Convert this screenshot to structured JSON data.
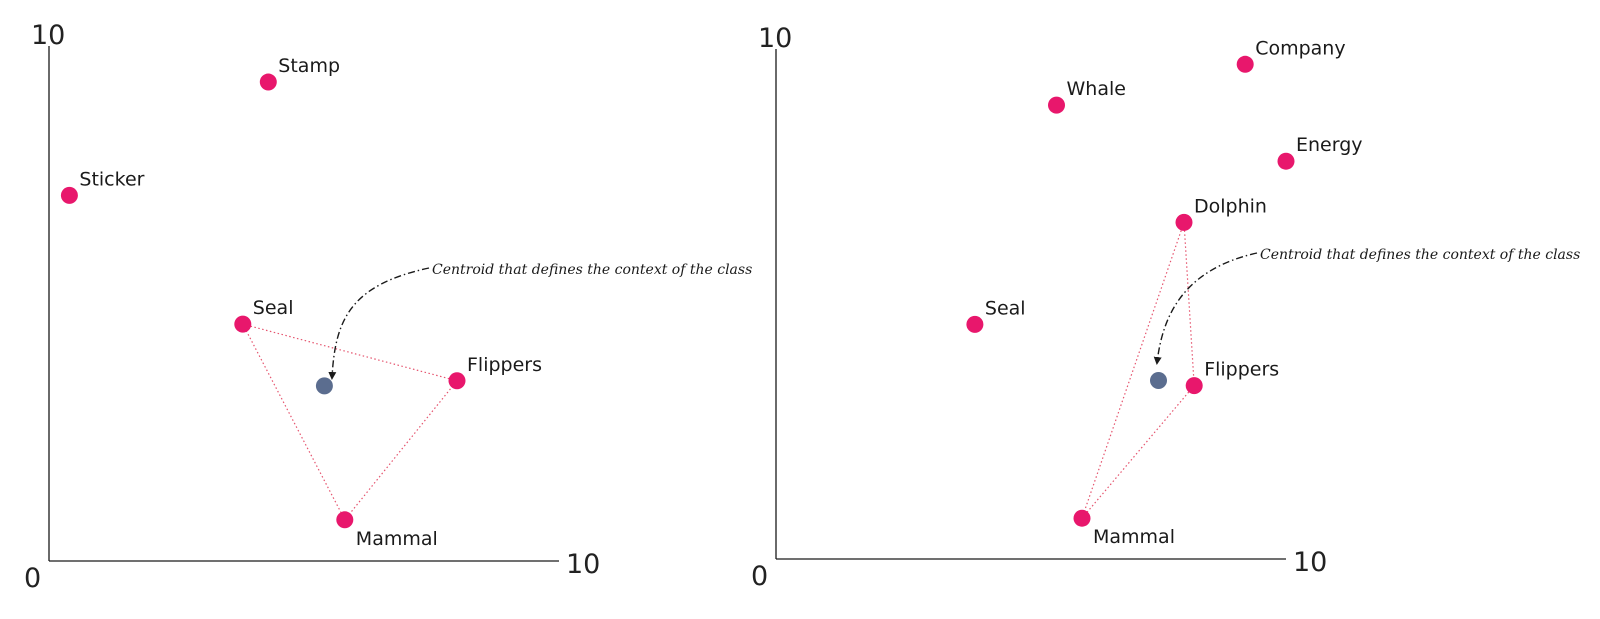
{
  "colors": {
    "point": "#e8176c",
    "centroid": "#5b6d8f",
    "triangle": "#e5546e",
    "axis": "#1a1a1a"
  },
  "chart_data": [
    {
      "type": "scatter",
      "xlim": [
        0,
        10
      ],
      "ylim": [
        0,
        10
      ],
      "ticks": {
        "origin": "0",
        "x_max": "10",
        "y_max": "10"
      },
      "points": [
        {
          "label": "Stamp",
          "x": 4.3,
          "y": 9.3
        },
        {
          "label": "Sticker",
          "x": 0.4,
          "y": 7.1
        },
        {
          "label": "Seal",
          "x": 3.8,
          "y": 4.6
        },
        {
          "label": "Flippers",
          "x": 8.0,
          "y": 3.5
        },
        {
          "label": "Mammal",
          "x": 5.8,
          "y": 0.8
        }
      ],
      "centroid": {
        "x": 5.4,
        "y": 3.4
      },
      "triangle": [
        "Seal",
        "Flippers",
        "Mammal"
      ],
      "annotation": "Centroid that defines the context of the class"
    },
    {
      "type": "scatter",
      "xlim": [
        0,
        10
      ],
      "ylim": [
        0,
        10
      ],
      "ticks": {
        "origin": "0",
        "x_max": "10",
        "y_max": "10"
      },
      "points": [
        {
          "label": "Company",
          "x": 9.2,
          "y": 9.7
        },
        {
          "label": "Whale",
          "x": 5.5,
          "y": 8.9
        },
        {
          "label": "Energy",
          "x": 10.0,
          "y": 7.8
        },
        {
          "label": "Dolphin",
          "x": 8.0,
          "y": 6.6
        },
        {
          "label": "Seal",
          "x": 3.9,
          "y": 4.6
        },
        {
          "label": "Flippers",
          "x": 8.2,
          "y": 3.4
        },
        {
          "label": "Mammal",
          "x": 6.0,
          "y": 0.8
        }
      ],
      "centroid": {
        "x": 7.5,
        "y": 3.5
      },
      "triangle": [
        "Dolphin",
        "Flippers",
        "Mammal"
      ],
      "annotation": "Centroid that defines the context of the class"
    }
  ]
}
